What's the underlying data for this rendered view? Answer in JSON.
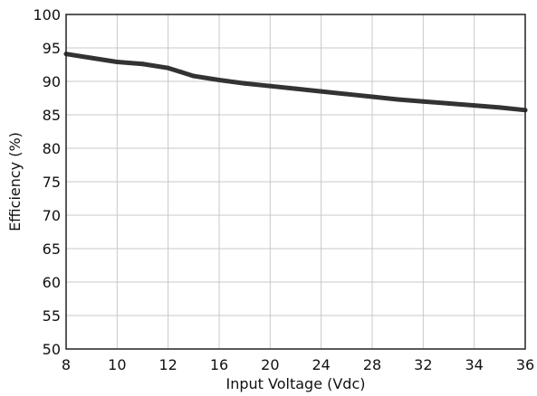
{
  "chart_data": {
    "type": "line",
    "title": "",
    "xlabel": "Input Voltage (Vdc)",
    "ylabel": "Efficiency (%)",
    "x_tick_labels": [
      "8",
      "10",
      "12",
      "16",
      "20",
      "24",
      "28",
      "32",
      "34",
      "36"
    ],
    "y_tick_labels": [
      "50",
      "55",
      "60",
      "65",
      "70",
      "75",
      "80",
      "85",
      "90",
      "95",
      "100"
    ],
    "ylim": [
      50,
      100
    ],
    "grid": true,
    "legend": "none",
    "series": [
      {
        "color": "#333333",
        "points": [
          {
            "x": 8,
            "y": 94.1
          },
          {
            "x": 9,
            "y": 93.5
          },
          {
            "x": 10,
            "y": 92.9
          },
          {
            "x": 11,
            "y": 92.6
          },
          {
            "x": 12,
            "y": 92.0
          },
          {
            "x": 13,
            "y": 91.4
          },
          {
            "x": 14,
            "y": 90.8
          },
          {
            "x": 16,
            "y": 90.2
          },
          {
            "x": 18,
            "y": 89.7
          },
          {
            "x": 20,
            "y": 89.3
          },
          {
            "x": 22,
            "y": 88.9
          },
          {
            "x": 24,
            "y": 88.5
          },
          {
            "x": 26,
            "y": 88.1
          },
          {
            "x": 28,
            "y": 87.7
          },
          {
            "x": 30,
            "y": 87.3
          },
          {
            "x": 32,
            "y": 87.0
          },
          {
            "x": 33,
            "y": 86.7
          },
          {
            "x": 34,
            "y": 86.4
          },
          {
            "x": 35,
            "y": 86.1
          },
          {
            "x": 36,
            "y": 85.7
          }
        ]
      }
    ]
  }
}
